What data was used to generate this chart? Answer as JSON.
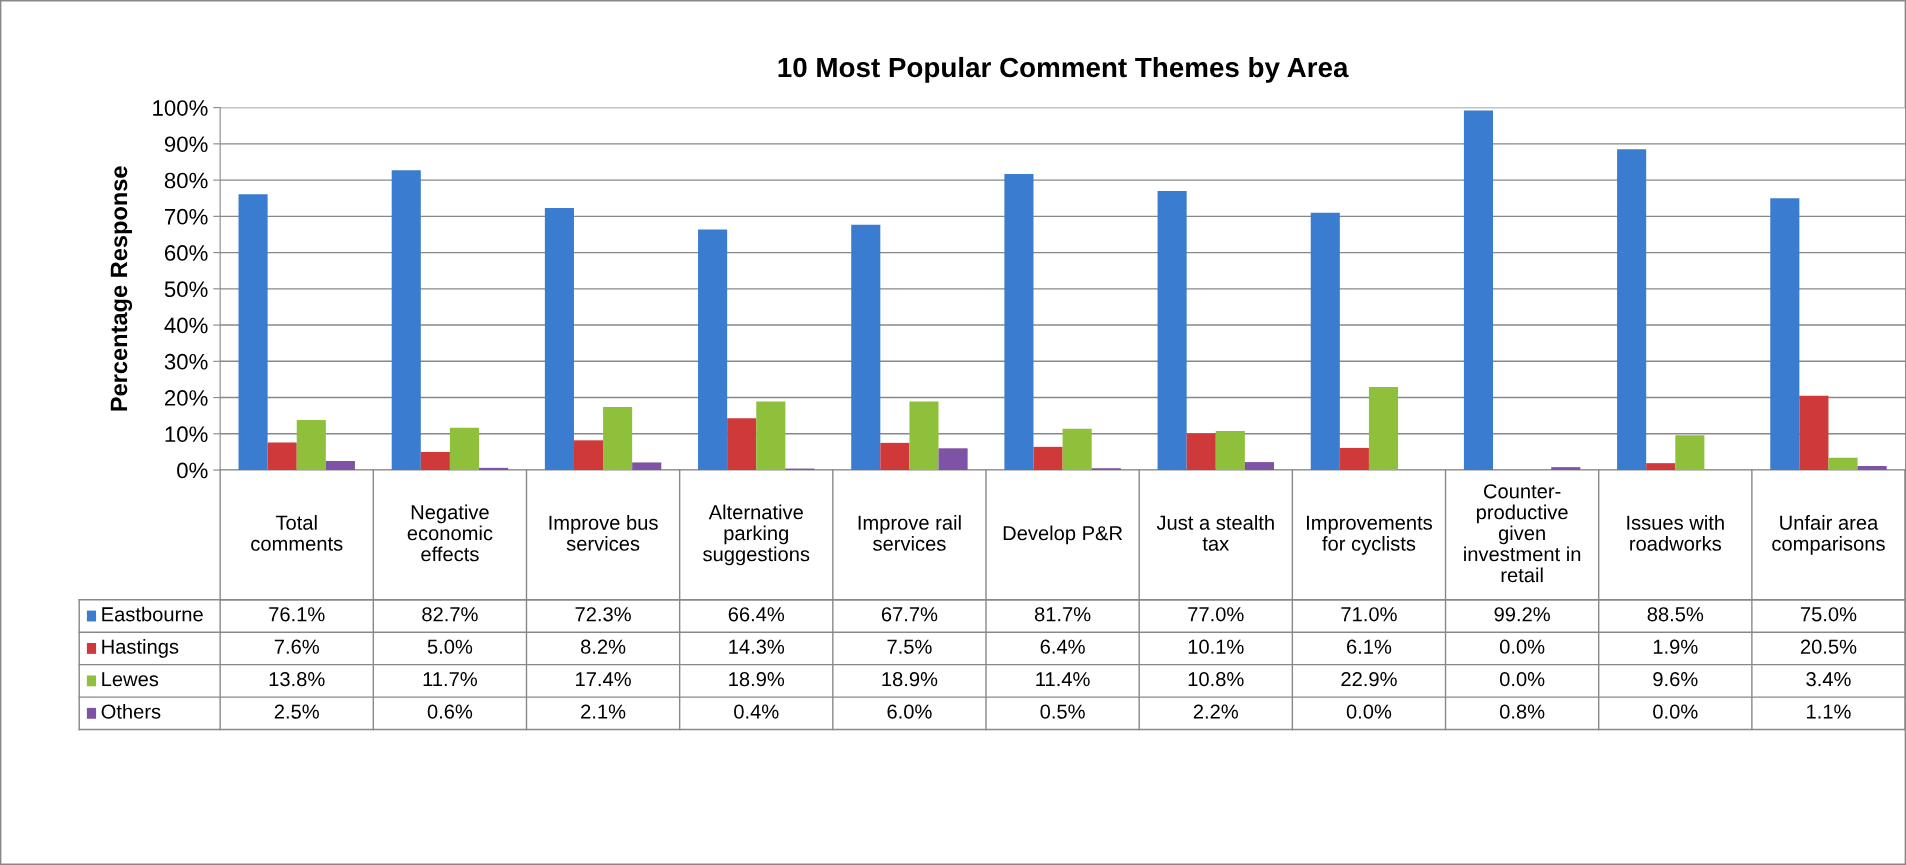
{
  "chart_data": {
    "type": "bar",
    "title": "10 Most Popular Comment Themes by Area",
    "ylabel": "Percentage Response",
    "categories": [
      "Total\ncomments",
      "Negative\neconomic\neffects",
      "Improve bus\nservices",
      "Alternative\nparking\nsuggestions",
      "Improve rail\nservices",
      "Develop P&R",
      "Just a stealth\ntax",
      "Improvements\nfor cyclists",
      "Counter-\nproductive\ngiven\ninvestment in\nretail",
      "Issues with\nroadworks",
      "Unfair area\ncomparisons"
    ],
    "series": [
      {
        "name": "Eastbourne",
        "color": "#3a7cd0",
        "values": [
          76.1,
          82.7,
          72.3,
          66.4,
          67.7,
          81.7,
          77.0,
          71.0,
          99.2,
          88.5,
          75.0
        ],
        "value_labels": [
          "76.1%",
          "82.7%",
          "72.3%",
          "66.4%",
          "67.7%",
          "81.7%",
          "77.0%",
          "71.0%",
          "99.2%",
          "88.5%",
          "75.0%"
        ]
      },
      {
        "name": "Hastings",
        "color": "#d0393a",
        "values": [
          7.6,
          5.0,
          8.2,
          14.3,
          7.5,
          6.4,
          10.1,
          6.1,
          0.0,
          1.9,
          20.5
        ],
        "value_labels": [
          "7.6%",
          "5.0%",
          "8.2%",
          "14.3%",
          "7.5%",
          "6.4%",
          "10.1%",
          "6.1%",
          "0.0%",
          "1.9%",
          "20.5%"
        ]
      },
      {
        "name": "Lewes",
        "color": "#8fc03c",
        "values": [
          13.8,
          11.7,
          17.4,
          18.9,
          18.9,
          11.4,
          10.8,
          22.9,
          0.0,
          9.6,
          3.4
        ],
        "value_labels": [
          "13.8%",
          "11.7%",
          "17.4%",
          "18.9%",
          "18.9%",
          "11.4%",
          "10.8%",
          "22.9%",
          "0.0%",
          "9.6%",
          "3.4%"
        ]
      },
      {
        "name": "Others",
        "color": "#7e52a4",
        "values": [
          2.5,
          0.6,
          2.1,
          0.4,
          6.0,
          0.5,
          2.2,
          0.0,
          0.8,
          0.0,
          1.1
        ],
        "value_labels": [
          "2.5%",
          "0.6%",
          "2.1%",
          "0.4%",
          "6.0%",
          "0.5%",
          "2.2%",
          "0.0%",
          "0.8%",
          "0.0%",
          "1.1%"
        ]
      }
    ],
    "ylim": [
      0,
      100
    ],
    "yticks": [
      {
        "value": 0,
        "label": "0%"
      },
      {
        "value": 10,
        "label": "10%"
      },
      {
        "value": 20,
        "label": "20%"
      },
      {
        "value": 30,
        "label": "30%"
      },
      {
        "value": 40,
        "label": "40%"
      },
      {
        "value": 50,
        "label": "50%"
      },
      {
        "value": 60,
        "label": "60%"
      },
      {
        "value": 70,
        "label": "70%"
      },
      {
        "value": 80,
        "label": "80%"
      },
      {
        "value": 90,
        "label": "90%"
      },
      {
        "value": 100,
        "label": "100%"
      }
    ],
    "grid": "y",
    "legend": "bottom left"
  }
}
